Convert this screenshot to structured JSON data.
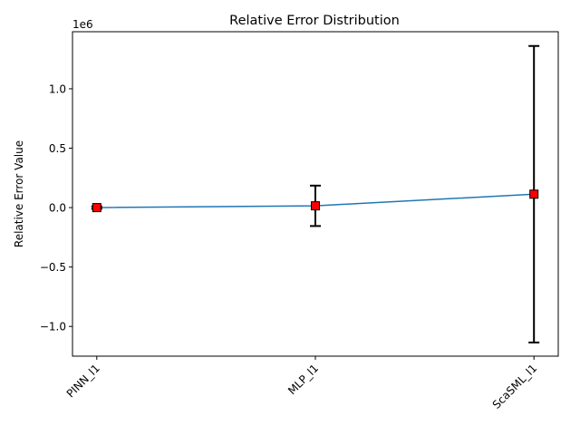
{
  "chart_data": {
    "type": "line",
    "title": "Relative Error Distribution",
    "xlabel": "",
    "ylabel": "Relative Error Value",
    "y_offset_label": "1e6",
    "categories": [
      "PINN_l1",
      "MLP_l1",
      "ScaSML_l1"
    ],
    "series": [
      {
        "values": [
          0.0,
          0.015,
          0.113
        ],
        "error_low": [
          -0.01,
          -0.155,
          -1.135
        ],
        "error_high": [
          0.01,
          0.185,
          1.36
        ]
      }
    ],
    "y_scale_factor": 1000000,
    "ylim": [
      -1.25,
      1.48
    ],
    "yticks": [
      -1.0,
      -0.5,
      0.0,
      0.5,
      1.0
    ],
    "ytick_labels": [
      "−1.0",
      "−0.5",
      "0.0",
      "0.5",
      "1.0"
    ],
    "grid": false,
    "colors": {
      "line": "#1f77b4",
      "marker_fill": "#ff0000",
      "marker_edge": "#000000",
      "errorbar": "#000000"
    }
  }
}
